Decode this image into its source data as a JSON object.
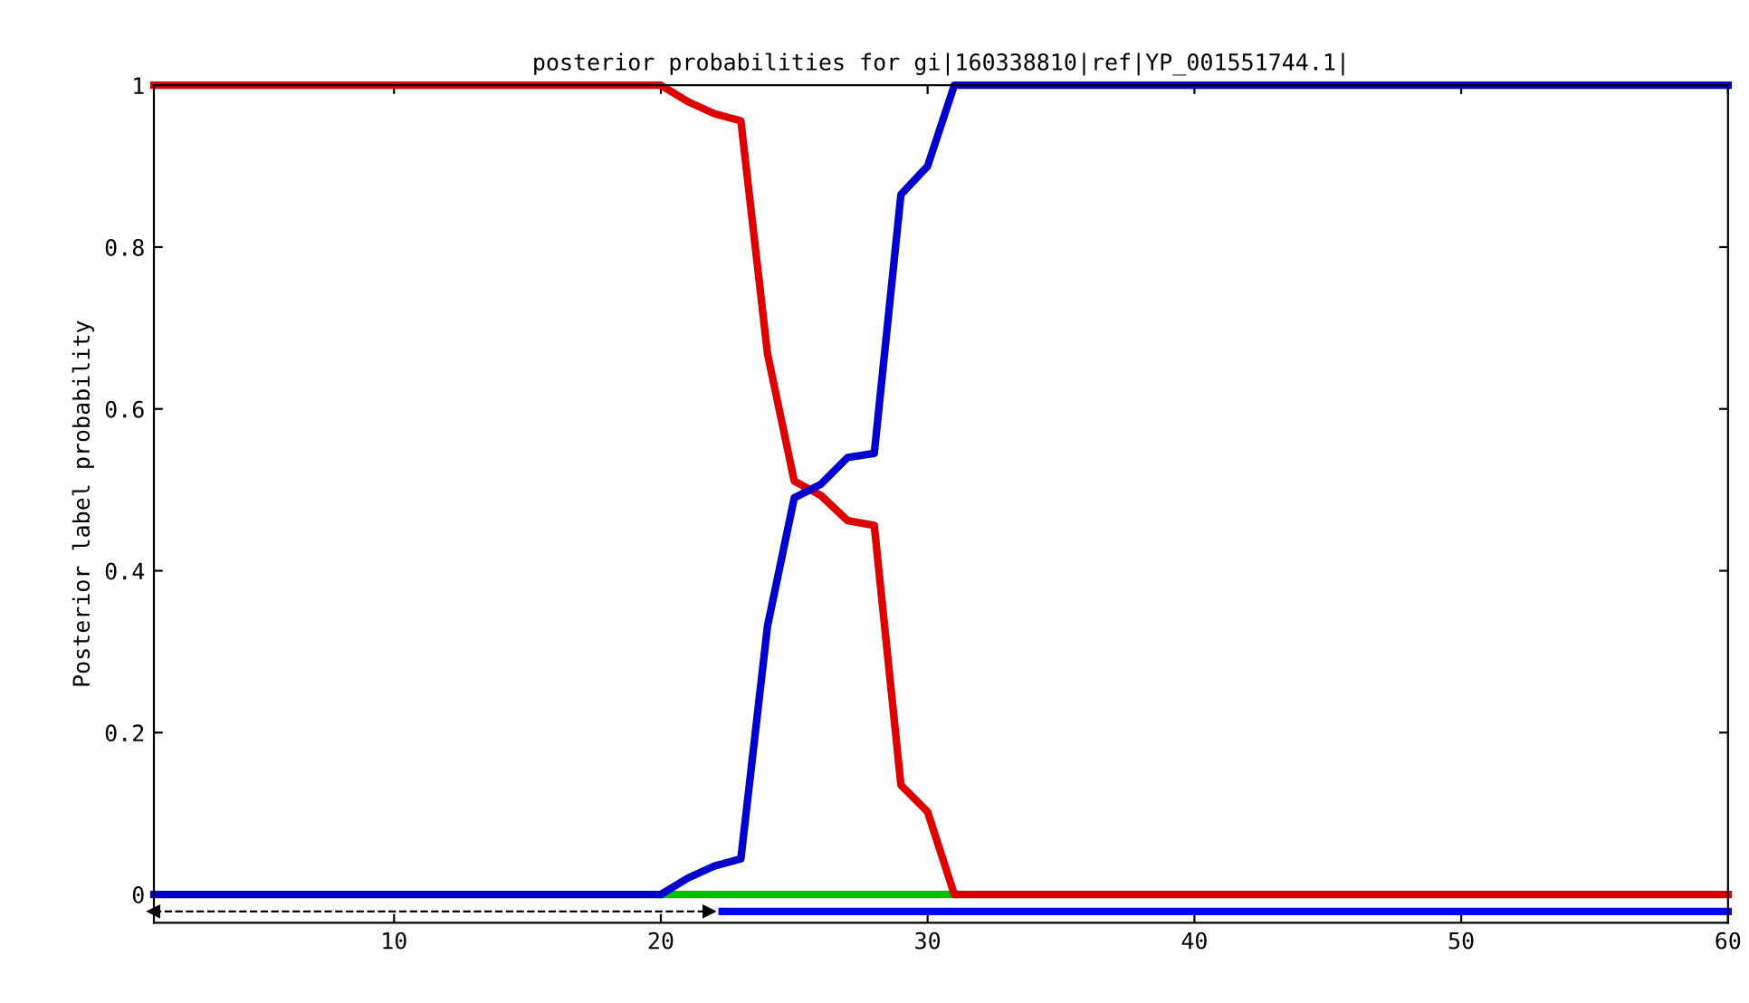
{
  "chart_data": {
    "type": "line",
    "title": "posterior probabilities for gi|160338810|ref|YP_001551744.1|",
    "ylabel": "Posterior label probability",
    "series": [
      {
        "color": "#00c000",
        "x": [
          20,
          31
        ],
        "values": [
          0,
          0
        ]
      },
      {
        "color": "#dd0000",
        "x": [
          1,
          20,
          21,
          22,
          23,
          24,
          25,
          26,
          27,
          28,
          29,
          30,
          31,
          60
        ],
        "values": [
          1,
          1,
          0.98,
          0.965,
          0.956,
          0.668,
          0.511,
          0.493,
          0.462,
          0.456,
          0.135,
          0.102,
          0,
          0
        ]
      },
      {
        "color": "#0000cc",
        "x": [
          1,
          20,
          21,
          22,
          23,
          24,
          25,
          26,
          27,
          28,
          29,
          30,
          31,
          60
        ],
        "values": [
          0,
          0,
          0.02,
          0.035,
          0.044,
          0.332,
          0.49,
          0.507,
          0.54,
          0.545,
          0.865,
          0.9,
          1,
          1
        ]
      },
      {
        "color": "#000000",
        "line_style": "dashed",
        "marker": "triangle",
        "x": [
          1,
          21.8
        ],
        "values": [
          -0.021,
          -0.021
        ]
      },
      {
        "color": "#0000ff",
        "x": [
          22.3,
          60
        ],
        "values": [
          -0.021,
          -0.021
        ]
      }
    ],
    "xlim": [
      1,
      60
    ],
    "xticks": [
      10,
      20,
      30,
      40,
      50,
      60
    ],
    "ylim": [
      -0.035,
      1
    ],
    "yticks": [
      0,
      0.2,
      0.4,
      0.6,
      0.8,
      1
    ],
    "grid": false,
    "legend": false
  }
}
